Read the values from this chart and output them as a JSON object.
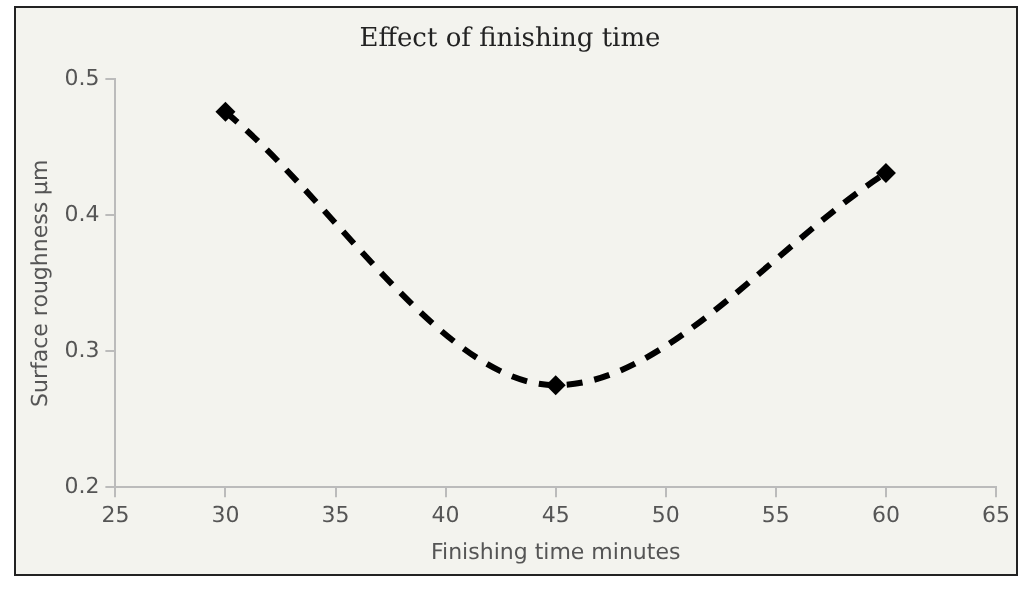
{
  "chart_data": {
    "type": "line",
    "title": "Effect of finishing time",
    "xlabel": "Finishing time minutes",
    "ylabel": "Surface roughness µm",
    "x": [
      30,
      45,
      60
    ],
    "series": [
      {
        "color": "#000000",
        "values": [
          0.476,
          0.275,
          0.431
        ]
      }
    ],
    "xlim": [
      25,
      65
    ],
    "xticks": [
      25,
      30,
      35,
      40,
      45,
      50,
      55,
      60,
      65
    ],
    "ylim": [
      0.2,
      0.5
    ],
    "yticks": [
      0.2,
      0.3,
      0.4,
      0.5
    ],
    "grid": false,
    "legend": false,
    "marker": "diamond",
    "line_style": "dashed"
  }
}
